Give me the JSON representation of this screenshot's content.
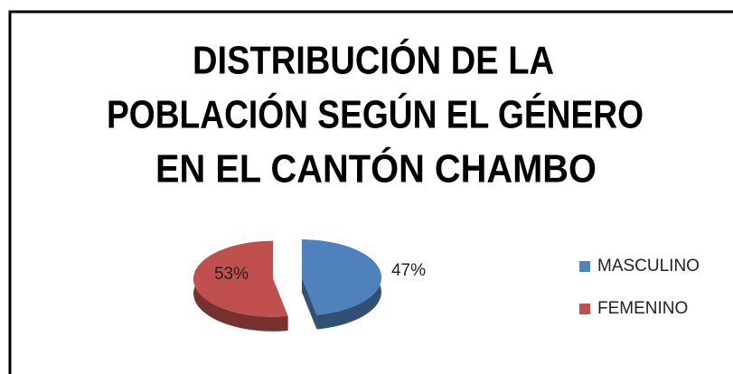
{
  "chart_data": {
    "type": "pie",
    "title": [
      "DISTRIBUCIÓN DE LA",
      "POBLACIÓN SEGÚN EL GÉNERO",
      "EN EL CANTÓN CHAMBO"
    ],
    "categories": [
      "MASCULINO",
      "FEMENINO"
    ],
    "values": [
      47,
      53
    ],
    "value_labels": [
      "47%",
      "53%"
    ],
    "colors": [
      "#4f81bd",
      "#c0504d"
    ],
    "legend": "right"
  }
}
